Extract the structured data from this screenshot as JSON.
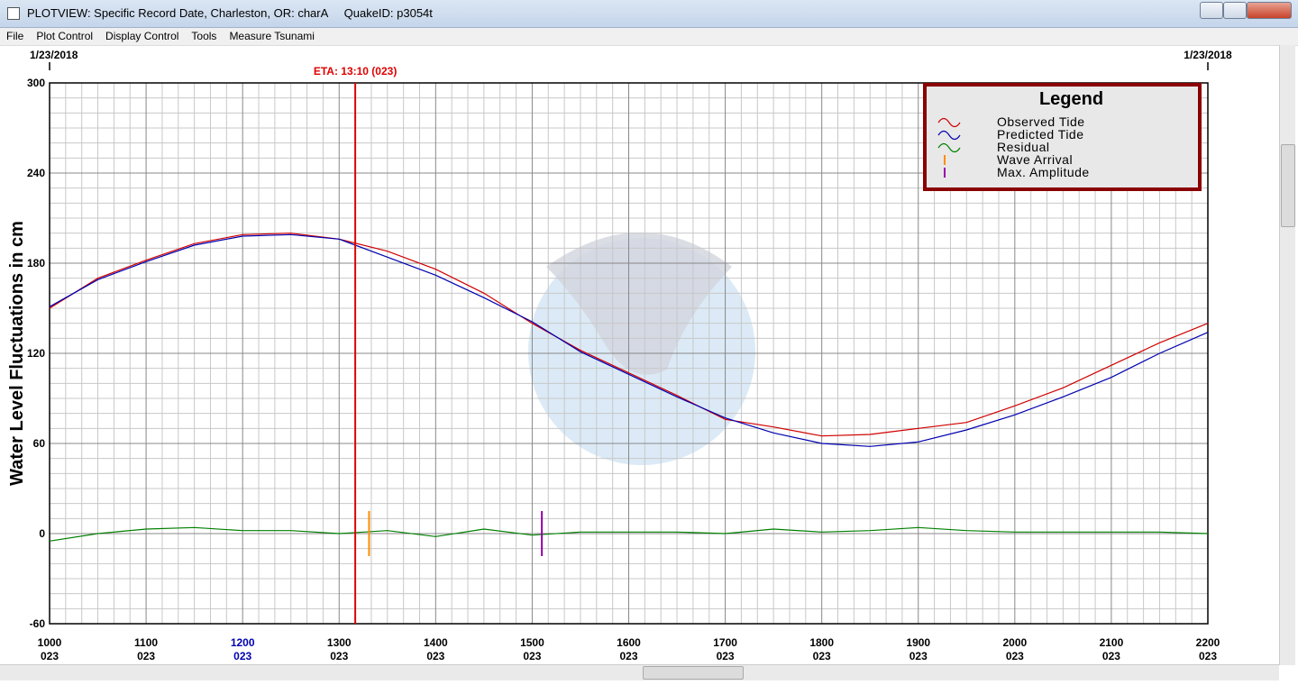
{
  "window": {
    "title": "PLOTVIEW: Specific Record Date, Charleston, OR: charA     QuakeID: p3054t",
    "menu": [
      "File",
      "Plot Control",
      "Display Control",
      "Tools",
      "Measure Tsunami"
    ]
  },
  "chart_data": {
    "type": "line",
    "ylabel": "Water Level Fluctuations in cm",
    "date_labels": [
      "1/23/2018",
      "1/23/2018"
    ],
    "eta": {
      "x": 13.1667,
      "label": "ETA: 13:10 (023)",
      "color": "#e00000"
    },
    "x": [
      10,
      10.5,
      11,
      11.5,
      12,
      12.5,
      13,
      13.5,
      14,
      14.5,
      15,
      15.5,
      16,
      16.5,
      17,
      17.5,
      18,
      18.5,
      19,
      19.5,
      20,
      20.5,
      21,
      21.5,
      22
    ],
    "series": [
      {
        "name": "Observed Tide",
        "color": "#d00000",
        "values": [
          150,
          170,
          182,
          193,
          199,
          200,
          196,
          188,
          176,
          160,
          140,
          122,
          107,
          92,
          76,
          71,
          65,
          66,
          70,
          74,
          85,
          97,
          112,
          127,
          140
        ]
      },
      {
        "name": "Predicted Tide",
        "color": "#0000b0",
        "values": [
          151,
          169,
          181,
          192,
          198,
          199,
          196,
          184,
          172,
          157,
          141,
          121,
          106,
          91,
          77,
          67,
          60,
          58,
          61,
          69,
          79,
          91,
          104,
          120,
          134
        ]
      },
      {
        "name": "Residual",
        "color": "#008000",
        "values": [
          -5,
          0,
          3,
          4,
          2,
          2,
          0,
          2,
          -2,
          3,
          -1,
          1,
          1,
          1,
          0,
          3,
          1,
          2,
          4,
          2,
          1,
          1,
          1,
          1,
          0
        ]
      }
    ],
    "markers": [
      {
        "name": "Wave Arrival",
        "color": "#ff8c00",
        "x": 13.31,
        "range": [
          -15,
          15
        ]
      },
      {
        "name": "Max. Amplitude",
        "color": "#9900aa",
        "x": 15.1,
        "range": [
          -15,
          15
        ]
      }
    ],
    "legend_title": "Legend",
    "legend": "upper right",
    "grid": true,
    "xlim": [
      10,
      22
    ],
    "xticks": [
      {
        "value": 10,
        "label": "1000"
      },
      {
        "value": 11,
        "label": "1100"
      },
      {
        "value": 12,
        "label": "1200"
      },
      {
        "value": 13,
        "label": "1300"
      },
      {
        "value": 14,
        "label": "1400"
      },
      {
        "value": 15,
        "label": "1500"
      },
      {
        "value": 16,
        "label": "1600"
      },
      {
        "value": 17,
        "label": "1700"
      },
      {
        "value": 18,
        "label": "1800"
      },
      {
        "value": 19,
        "label": "1900"
      },
      {
        "value": 20,
        "label": "2000"
      },
      {
        "value": 21,
        "label": "2100"
      },
      {
        "value": 22,
        "label": "2200"
      }
    ],
    "xtick_sublabels": [
      "023",
      "023",
      "023",
      "023",
      "023",
      "023",
      "023",
      "023",
      "023",
      "023",
      "023",
      "023",
      "023"
    ],
    "ylim": [
      -60,
      300
    ],
    "yticks": [
      -60,
      0,
      60,
      120,
      180,
      240,
      300
    ]
  }
}
